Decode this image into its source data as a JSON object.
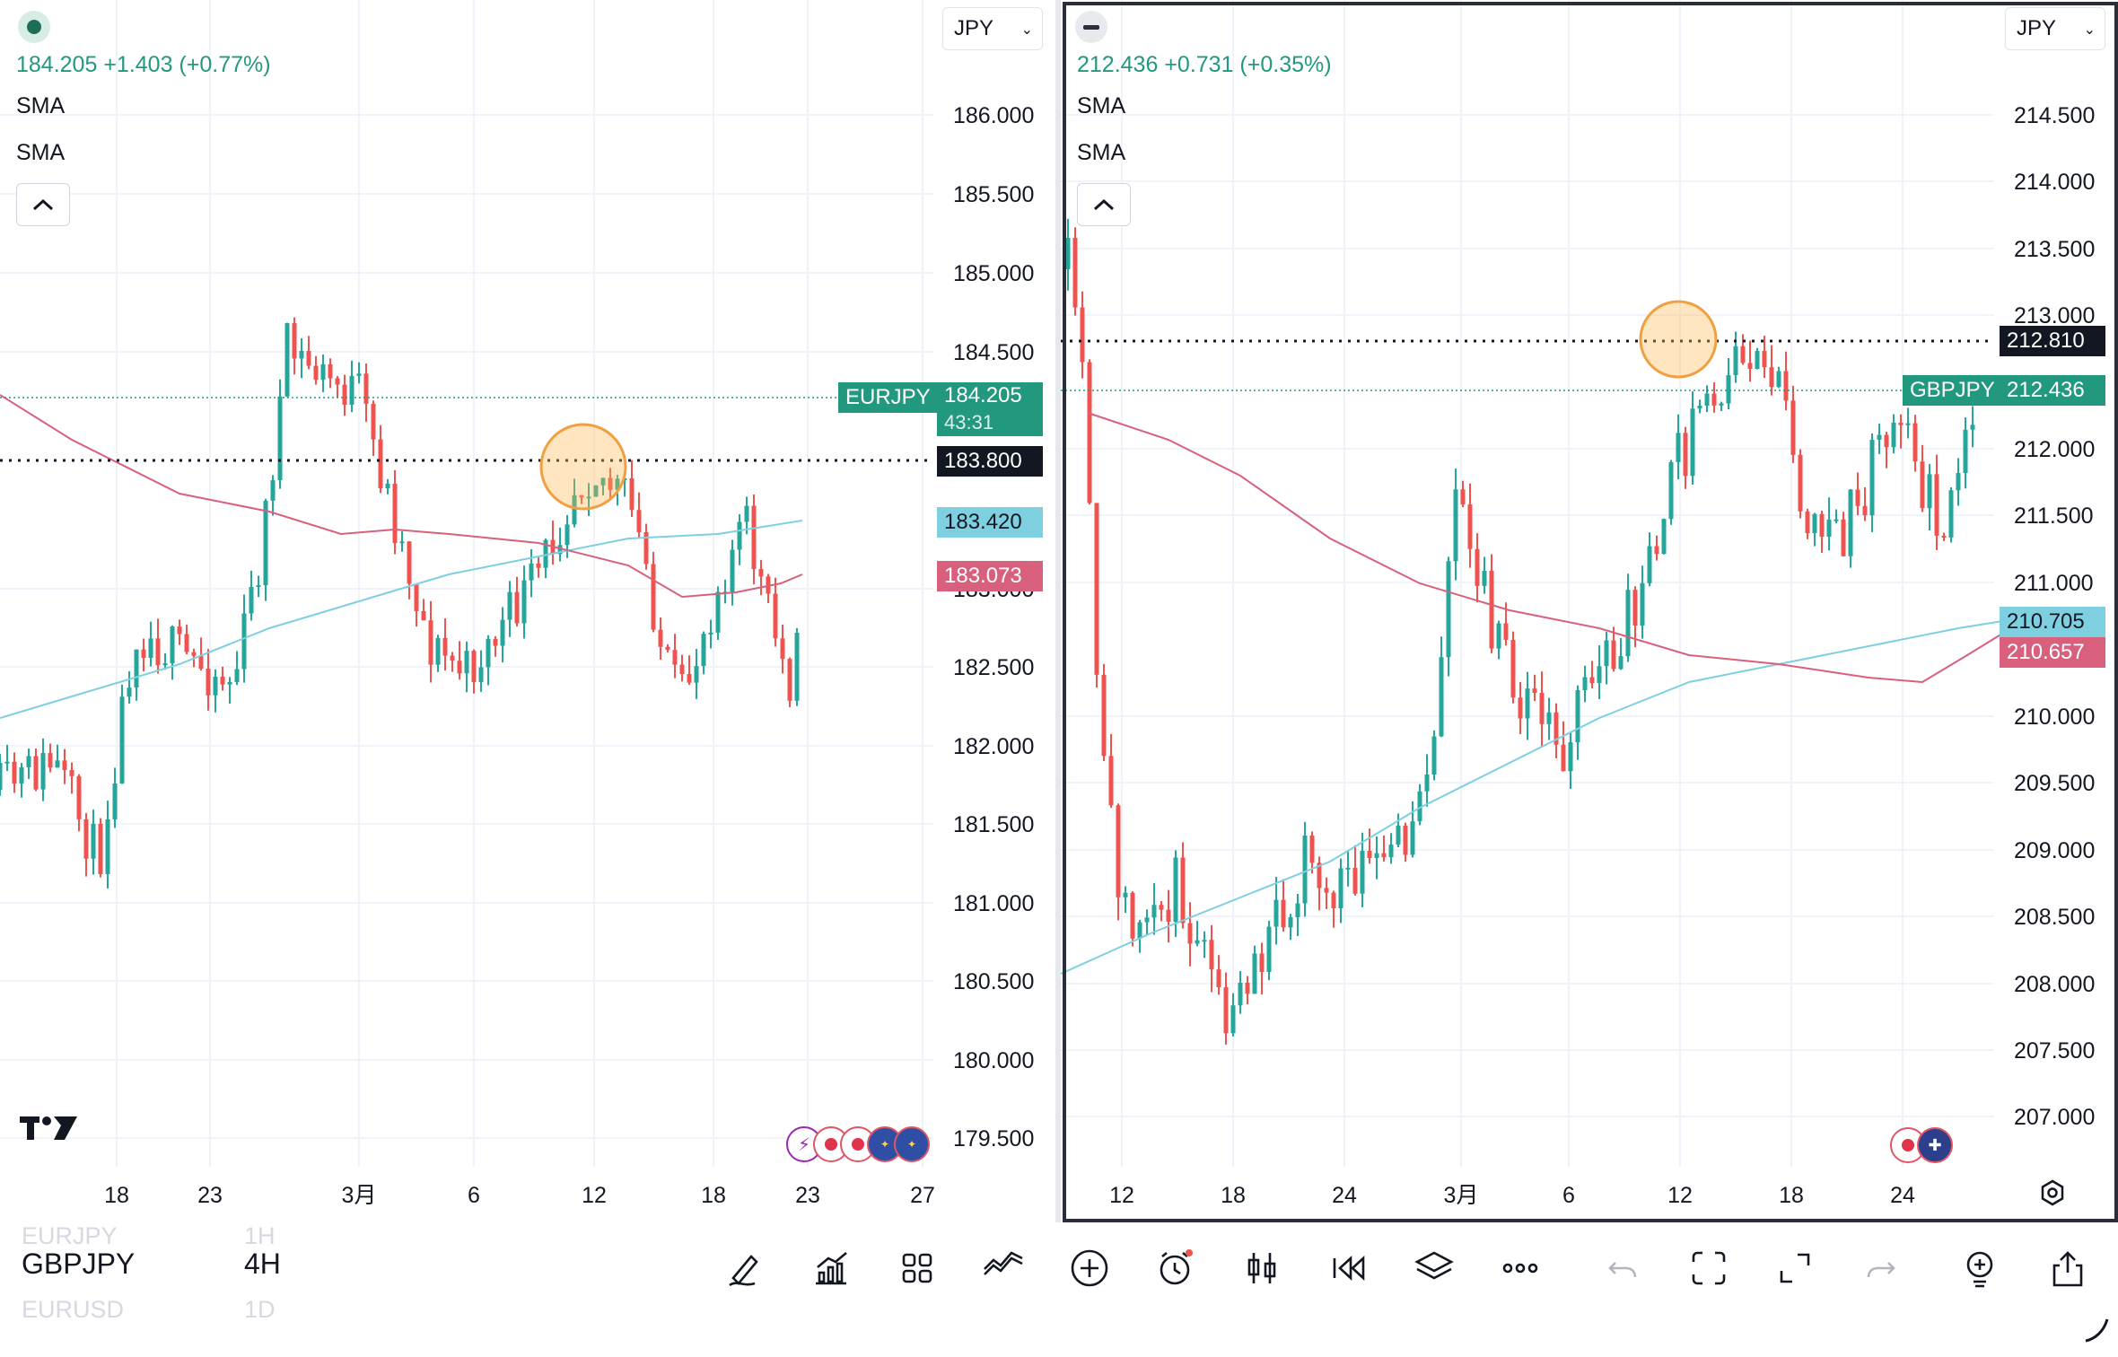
{
  "left": {
    "legend": "184.205  +1.403 (+0.77%)",
    "sma1": "SMA",
    "sma2": "SMA",
    "currency": "JPY",
    "yticks": [
      "186.000",
      "185.500",
      "185.000",
      "184.500",
      "183.000",
      "182.500",
      "182.000",
      "181.500",
      "181.000",
      "180.500",
      "180.000",
      "179.500"
    ],
    "xticks": [
      "18",
      "23",
      "3月",
      "6",
      "12",
      "18",
      "23",
      "27"
    ],
    "symbol_tag": "EURJPY",
    "price_tag": "184.205",
    "countdown": "43:31",
    "line_tag": "183.800",
    "sma_fast_tag": "183.420",
    "sma_slow_tag": "183.073"
  },
  "right": {
    "legend": "212.436  +0.731 (+0.35%)",
    "sma1": "SMA",
    "sma2": "SMA",
    "currency": "JPY",
    "yticks": [
      "214.500",
      "214.000",
      "213.500",
      "213.000",
      "212.000",
      "211.500",
      "211.000",
      "210.000",
      "209.500",
      "209.000",
      "208.500",
      "208.000",
      "207.500",
      "207.000"
    ],
    "xticks": [
      "12",
      "18",
      "24",
      "3月",
      "6",
      "12",
      "18",
      "24"
    ],
    "symbol_tag": "GBPJPY",
    "price_tag": "212.436",
    "line_tag": "212.810",
    "sma_fast_tag": "210.705",
    "sma_slow_tag": "210.657"
  },
  "symbol_picker": {
    "prev": {
      "symbol": "EURJPY",
      "interval": "1H"
    },
    "current": {
      "symbol": "GBPJPY",
      "interval": "4H"
    },
    "next": {
      "symbol": "EURUSD",
      "interval": "1D"
    }
  },
  "colors": {
    "up": "#26a69a",
    "down": "#ef5350",
    "sma_fast": "#7ecfe0",
    "sma_slow": "#d8607c",
    "accent": "#22997f"
  },
  "toolbar_icons": [
    "pen-icon",
    "indicators-icon",
    "layouts-icon",
    "compare-icon",
    "add-icon",
    "alert-icon",
    "chart-type-icon",
    "replay-icon",
    "layers-icon",
    "more-icon",
    "undo-icon",
    "fullscreen-icon",
    "expand-icon",
    "redo-icon",
    "idea-icon",
    "share-icon"
  ]
}
